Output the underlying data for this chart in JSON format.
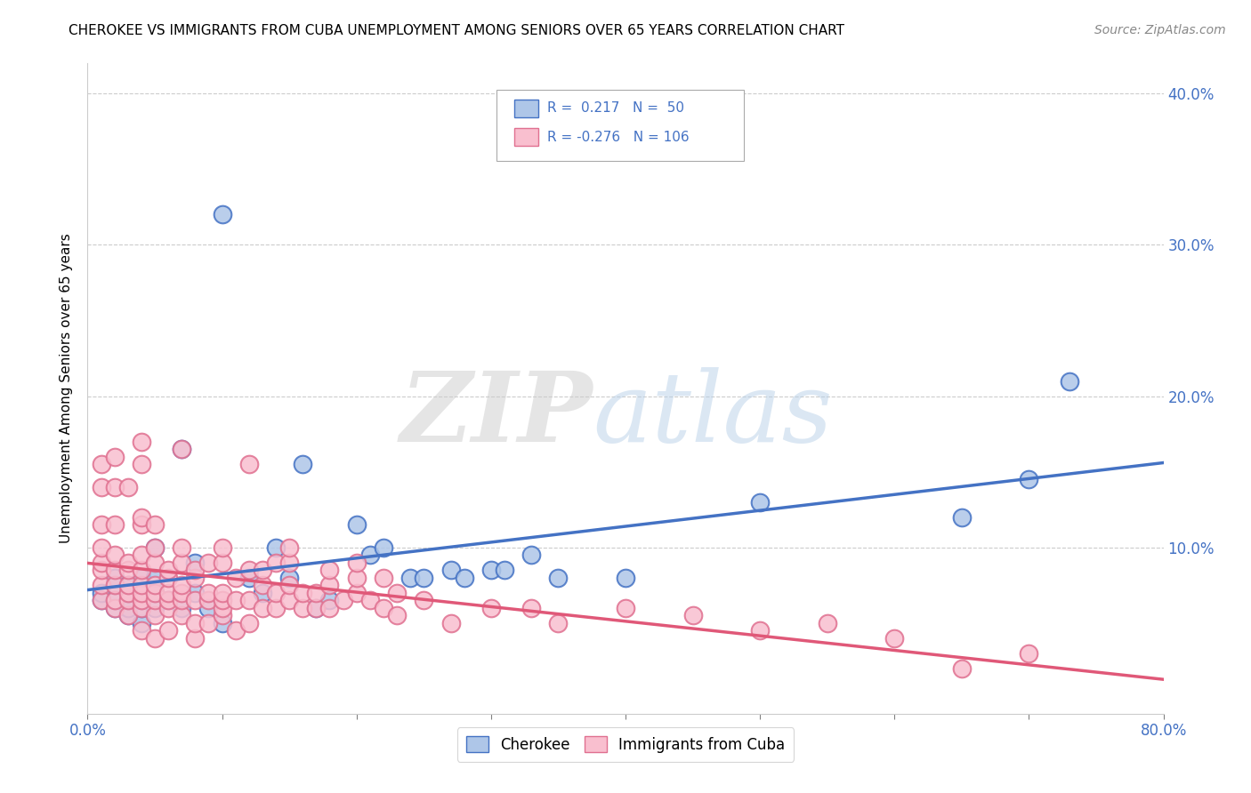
{
  "title": "CHEROKEE VS IMMIGRANTS FROM CUBA UNEMPLOYMENT AMONG SENIORS OVER 65 YEARS CORRELATION CHART",
  "source": "Source: ZipAtlas.com",
  "ylabel": "Unemployment Among Seniors over 65 years",
  "xlim": [
    0.0,
    0.8
  ],
  "ylim": [
    -0.01,
    0.42
  ],
  "xticks": [
    0.0,
    0.1,
    0.2,
    0.3,
    0.4,
    0.5,
    0.6,
    0.7,
    0.8
  ],
  "xticklabels": [
    "0.0%",
    "",
    "",
    "",
    "",
    "",
    "",
    "",
    "80.0%"
  ],
  "yticks_right": [
    0.1,
    0.2,
    0.3,
    0.4
  ],
  "yticklabels_right": [
    "10.0%",
    "20.0%",
    "30.0%",
    "40.0%"
  ],
  "cherokee_color": "#aec6e8",
  "cherokee_edge_color": "#4472c4",
  "cuba_color": "#f9bfcf",
  "cuba_edge_color": "#e07090",
  "trend_cherokee_color": "#4472c4",
  "trend_cuba_color": "#e05878",
  "watermark_zip_color": "#d0d0d0",
  "watermark_atlas_color": "#b8cfe8",
  "cherokee_scatter": [
    [
      0.01,
      0.065
    ],
    [
      0.01,
      0.07
    ],
    [
      0.02,
      0.06
    ],
    [
      0.02,
      0.065
    ],
    [
      0.02,
      0.075
    ],
    [
      0.02,
      0.08
    ],
    [
      0.03,
      0.055
    ],
    [
      0.03,
      0.06
    ],
    [
      0.03,
      0.065
    ],
    [
      0.03,
      0.07
    ],
    [
      0.03,
      0.075
    ],
    [
      0.04,
      0.05
    ],
    [
      0.04,
      0.06
    ],
    [
      0.04,
      0.065
    ],
    [
      0.04,
      0.08
    ],
    [
      0.05,
      0.06
    ],
    [
      0.05,
      0.07
    ],
    [
      0.05,
      0.08
    ],
    [
      0.05,
      0.1
    ],
    [
      0.06,
      0.065
    ],
    [
      0.07,
      0.165
    ],
    [
      0.07,
      0.06
    ],
    [
      0.08,
      0.09
    ],
    [
      0.08,
      0.07
    ],
    [
      0.09,
      0.06
    ],
    [
      0.1,
      0.05
    ],
    [
      0.1,
      0.32
    ],
    [
      0.12,
      0.08
    ],
    [
      0.13,
      0.07
    ],
    [
      0.14,
      0.1
    ],
    [
      0.15,
      0.08
    ],
    [
      0.16,
      0.155
    ],
    [
      0.17,
      0.06
    ],
    [
      0.18,
      0.065
    ],
    [
      0.2,
      0.115
    ],
    [
      0.21,
      0.095
    ],
    [
      0.22,
      0.1
    ],
    [
      0.24,
      0.08
    ],
    [
      0.25,
      0.08
    ],
    [
      0.27,
      0.085
    ],
    [
      0.28,
      0.08
    ],
    [
      0.3,
      0.085
    ],
    [
      0.31,
      0.085
    ],
    [
      0.33,
      0.095
    ],
    [
      0.35,
      0.08
    ],
    [
      0.4,
      0.08
    ],
    [
      0.5,
      0.13
    ],
    [
      0.65,
      0.12
    ],
    [
      0.7,
      0.145
    ],
    [
      0.73,
      0.21
    ]
  ],
  "cuba_scatter": [
    [
      0.01,
      0.065
    ],
    [
      0.01,
      0.075
    ],
    [
      0.01,
      0.085
    ],
    [
      0.01,
      0.09
    ],
    [
      0.01,
      0.1
    ],
    [
      0.01,
      0.115
    ],
    [
      0.01,
      0.14
    ],
    [
      0.01,
      0.155
    ],
    [
      0.02,
      0.06
    ],
    [
      0.02,
      0.065
    ],
    [
      0.02,
      0.075
    ],
    [
      0.02,
      0.085
    ],
    [
      0.02,
      0.095
    ],
    [
      0.02,
      0.115
    ],
    [
      0.02,
      0.14
    ],
    [
      0.02,
      0.16
    ],
    [
      0.03,
      0.055
    ],
    [
      0.03,
      0.065
    ],
    [
      0.03,
      0.07
    ],
    [
      0.03,
      0.075
    ],
    [
      0.03,
      0.085
    ],
    [
      0.03,
      0.09
    ],
    [
      0.03,
      0.14
    ],
    [
      0.04,
      0.045
    ],
    [
      0.04,
      0.06
    ],
    [
      0.04,
      0.065
    ],
    [
      0.04,
      0.07
    ],
    [
      0.04,
      0.075
    ],
    [
      0.04,
      0.085
    ],
    [
      0.04,
      0.095
    ],
    [
      0.04,
      0.115
    ],
    [
      0.04,
      0.12
    ],
    [
      0.04,
      0.155
    ],
    [
      0.04,
      0.17
    ],
    [
      0.05,
      0.04
    ],
    [
      0.05,
      0.055
    ],
    [
      0.05,
      0.065
    ],
    [
      0.05,
      0.07
    ],
    [
      0.05,
      0.075
    ],
    [
      0.05,
      0.09
    ],
    [
      0.05,
      0.1
    ],
    [
      0.05,
      0.115
    ],
    [
      0.06,
      0.045
    ],
    [
      0.06,
      0.06
    ],
    [
      0.06,
      0.065
    ],
    [
      0.06,
      0.07
    ],
    [
      0.06,
      0.08
    ],
    [
      0.06,
      0.085
    ],
    [
      0.07,
      0.055
    ],
    [
      0.07,
      0.065
    ],
    [
      0.07,
      0.07
    ],
    [
      0.07,
      0.075
    ],
    [
      0.07,
      0.09
    ],
    [
      0.07,
      0.1
    ],
    [
      0.07,
      0.165
    ],
    [
      0.08,
      0.04
    ],
    [
      0.08,
      0.05
    ],
    [
      0.08,
      0.065
    ],
    [
      0.08,
      0.08
    ],
    [
      0.08,
      0.085
    ],
    [
      0.09,
      0.05
    ],
    [
      0.09,
      0.065
    ],
    [
      0.09,
      0.07
    ],
    [
      0.09,
      0.09
    ],
    [
      0.1,
      0.055
    ],
    [
      0.1,
      0.06
    ],
    [
      0.1,
      0.065
    ],
    [
      0.1,
      0.07
    ],
    [
      0.1,
      0.09
    ],
    [
      0.1,
      0.1
    ],
    [
      0.11,
      0.045
    ],
    [
      0.11,
      0.065
    ],
    [
      0.11,
      0.08
    ],
    [
      0.12,
      0.05
    ],
    [
      0.12,
      0.065
    ],
    [
      0.12,
      0.085
    ],
    [
      0.12,
      0.155
    ],
    [
      0.13,
      0.06
    ],
    [
      0.13,
      0.075
    ],
    [
      0.13,
      0.085
    ],
    [
      0.14,
      0.06
    ],
    [
      0.14,
      0.07
    ],
    [
      0.14,
      0.09
    ],
    [
      0.15,
      0.065
    ],
    [
      0.15,
      0.075
    ],
    [
      0.15,
      0.09
    ],
    [
      0.15,
      0.1
    ],
    [
      0.16,
      0.06
    ],
    [
      0.16,
      0.07
    ],
    [
      0.17,
      0.06
    ],
    [
      0.17,
      0.07
    ],
    [
      0.18,
      0.06
    ],
    [
      0.18,
      0.075
    ],
    [
      0.18,
      0.085
    ],
    [
      0.19,
      0.065
    ],
    [
      0.2,
      0.07
    ],
    [
      0.2,
      0.08
    ],
    [
      0.2,
      0.09
    ],
    [
      0.21,
      0.065
    ],
    [
      0.22,
      0.06
    ],
    [
      0.22,
      0.08
    ],
    [
      0.23,
      0.055
    ],
    [
      0.23,
      0.07
    ],
    [
      0.25,
      0.065
    ],
    [
      0.27,
      0.05
    ],
    [
      0.3,
      0.06
    ],
    [
      0.33,
      0.06
    ],
    [
      0.35,
      0.05
    ],
    [
      0.4,
      0.06
    ],
    [
      0.45,
      0.055
    ],
    [
      0.5,
      0.045
    ],
    [
      0.55,
      0.05
    ],
    [
      0.6,
      0.04
    ],
    [
      0.65,
      0.02
    ],
    [
      0.7,
      0.03
    ]
  ]
}
